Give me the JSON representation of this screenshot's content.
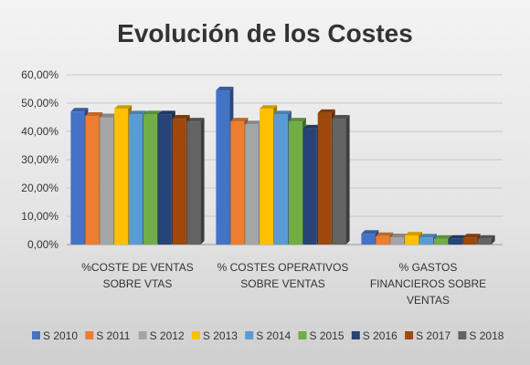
{
  "chart_data": {
    "type": "bar",
    "title": "Evolución de los Costes",
    "categories": [
      [
        "%COSTE DE VENTAS",
        "SOBRE VTAS"
      ],
      [
        "% COSTES OPERATIVOS",
        "SOBRE VENTAS"
      ],
      [
        "% GASTOS",
        "FINANCIEROS SOBRE",
        "VENTAS"
      ]
    ],
    "ylim": [
      0,
      60
    ],
    "yticks": [
      "0,00%",
      "10,00%",
      "20,00%",
      "30,00%",
      "40,00%",
      "50,00%",
      "60,00%"
    ],
    "grid": true,
    "legend_position": "bottom",
    "series": [
      {
        "name": "S 2010",
        "color": "#4472c4",
        "values": [
          47.0,
          54.5,
          3.8
        ]
      },
      {
        "name": "S 2011",
        "color": "#ed7d31",
        "values": [
          45.5,
          43.5,
          3.0
        ]
      },
      {
        "name": "S 2012",
        "color": "#a5a5a5",
        "values": [
          45.0,
          42.5,
          2.6
        ]
      },
      {
        "name": "S 2013",
        "color": "#ffc000",
        "values": [
          48.0,
          48.0,
          3.2
        ]
      },
      {
        "name": "S 2014",
        "color": "#5b9bd5",
        "values": [
          46.0,
          46.0,
          2.5
        ]
      },
      {
        "name": "S 2015",
        "color": "#70ad47",
        "values": [
          46.0,
          43.5,
          2.0
        ]
      },
      {
        "name": "S 2016",
        "color": "#264478",
        "values": [
          46.0,
          41.0,
          2.0
        ]
      },
      {
        "name": "S 2017",
        "color": "#9e480e",
        "values": [
          44.5,
          46.5,
          2.5
        ]
      },
      {
        "name": "S 2018",
        "color": "#636363",
        "values": [
          43.5,
          44.5,
          2.0
        ]
      }
    ]
  }
}
